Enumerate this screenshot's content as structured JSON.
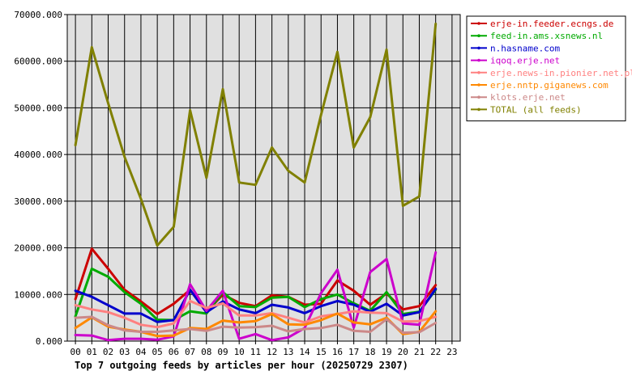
{
  "chart_data": {
    "type": "line",
    "title": "Top 7 outgoing feeds by articles per hour (20250729 2307)",
    "xlabel": "",
    "ylabel": "",
    "x_ticks": [
      "00",
      "01",
      "02",
      "03",
      "04",
      "05",
      "06",
      "07",
      "08",
      "09",
      "10",
      "11",
      "12",
      "13",
      "14",
      "15",
      "16",
      "17",
      "18",
      "19",
      "20",
      "21",
      "22",
      "23"
    ],
    "y_ticks": [
      "0.000",
      "10000.000",
      "20000.000",
      "30000.000",
      "40000.000",
      "50000.000",
      "60000.000",
      "70000.000"
    ],
    "ylim": [
      0,
      70000
    ],
    "grid": true,
    "plot_background": "#e0e0e0",
    "legend_position": "top-right",
    "series": [
      {
        "name": "erje-in.feeder.ecngs.de",
        "color": "#cc0000",
        "values": [
          9000,
          19800,
          15500,
          11000,
          8500,
          5800,
          8000,
          11000,
          6200,
          10000,
          8200,
          7500,
          9800,
          9500,
          7800,
          8000,
          13000,
          10800,
          7800,
          10200,
          6800,
          7500,
          12000
        ]
      },
      {
        "name": "feed-in.ams.xsnews.nl",
        "color": "#00aa00",
        "values": [
          5300,
          15500,
          13800,
          10500,
          8000,
          4600,
          4500,
          6400,
          5900,
          10500,
          7500,
          7300,
          9300,
          9500,
          7300,
          9000,
          10000,
          8100,
          6500,
          10500,
          5800,
          6300,
          11000
        ]
      },
      {
        "name": "n.hasname.com",
        "color": "#0000cc",
        "values": [
          10800,
          9500,
          7700,
          5900,
          5900,
          4100,
          4500,
          11000,
          6200,
          8500,
          6800,
          6000,
          7800,
          7200,
          6000,
          7500,
          8600,
          7800,
          6300,
          8000,
          5500,
          6200,
          11200
        ]
      },
      {
        "name": "iqoq.erje.net",
        "color": "#cc00cc",
        "values": [
          1300,
          1200,
          200,
          500,
          500,
          300,
          1000,
          12200,
          6500,
          10800,
          500,
          1500,
          200,
          800,
          2800,
          10300,
          15300,
          2900,
          14800,
          17600,
          3800,
          3500,
          19000
        ]
      },
      {
        "name": "erje.news-in.pionier.net.pl",
        "color": "#ff8080",
        "values": [
          7700,
          6800,
          6200,
          5000,
          3500,
          3000,
          3800,
          8600,
          7100,
          8100,
          5500,
          5500,
          6000,
          5000,
          4000,
          5300,
          5800,
          6400,
          6100,
          6000,
          4200,
          4300,
          5200
        ]
      },
      {
        "name": "erje.nntp.giganews.com",
        "color": "#ff8800",
        "values": [
          2800,
          5100,
          3100,
          2500,
          2000,
          1100,
          1200,
          2800,
          2600,
          4400,
          4000,
          4300,
          5800,
          3600,
          3500,
          4500,
          5900,
          4000,
          3600,
          5000,
          1500,
          2000,
          6400
        ]
      },
      {
        "name": "klots.erje.net",
        "color": "#cc8888",
        "values": [
          5000,
          5200,
          3400,
          2300,
          2000,
          2000,
          2300,
          2600,
          2200,
          3100,
          2900,
          3000,
          3300,
          2100,
          2600,
          2800,
          3500,
          2200,
          2000,
          4700,
          1800,
          1900,
          3900
        ]
      },
      {
        "name": "TOTAL (all feeds)",
        "color": "#808000",
        "values": [
          42000,
          63000,
          51000,
          39500,
          30500,
          20500,
          24500,
          49500,
          35000,
          54000,
          34000,
          33500,
          41500,
          36500,
          34000,
          48500,
          62000,
          41500,
          48000,
          62500,
          29000,
          31000,
          68000
        ]
      }
    ]
  }
}
